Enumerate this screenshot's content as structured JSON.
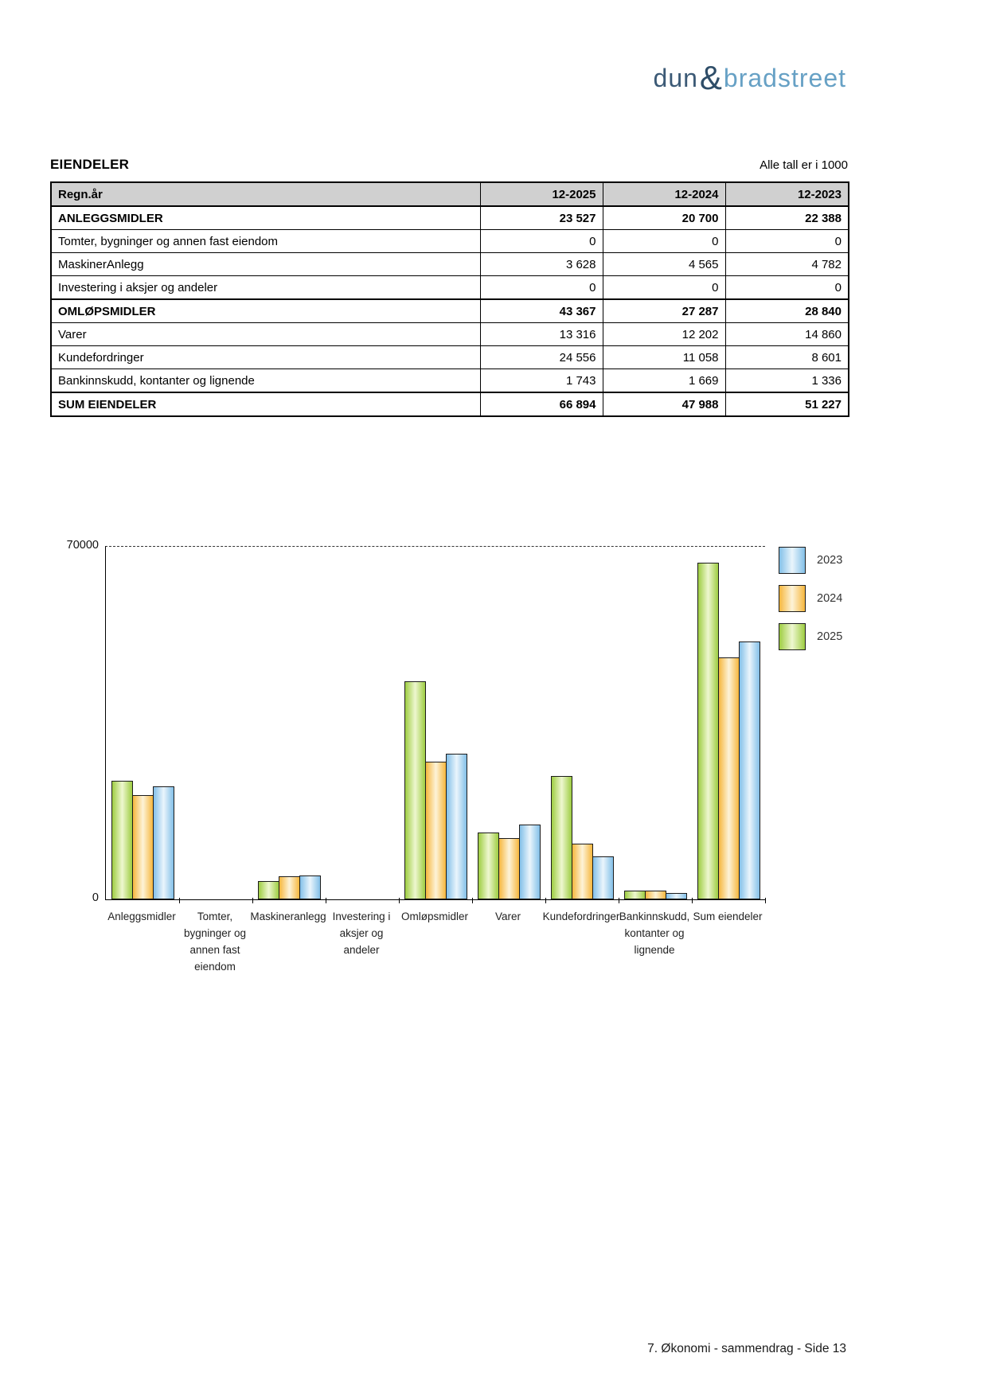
{
  "page": {
    "footer": "7. Økonomi - sammendrag - Side 13"
  },
  "logo": {
    "part1": "dun",
    "amp": "&",
    "part2": "bradstreet",
    "color_dark": "#3c5a76",
    "color_light": "#67a1c5"
  },
  "section": {
    "title": "EIENDELER",
    "note": "Alle tall er i 1000"
  },
  "table": {
    "header": [
      "Regn.år",
      "12-2025",
      "12-2024",
      "12-2023"
    ],
    "rows": [
      {
        "label": "ANLEGGSMIDLER",
        "values": [
          "23 527",
          "20 700",
          "22 388"
        ],
        "bold": true
      },
      {
        "label": "Tomter, bygninger og annen fast eiendom",
        "values": [
          "0",
          "0",
          "0"
        ],
        "bold": false
      },
      {
        "label": "MaskinerAnlegg",
        "values": [
          "3 628",
          "4 565",
          "4 782"
        ],
        "bold": false
      },
      {
        "label": "Investering i aksjer og andeler",
        "values": [
          "0",
          "0",
          "0"
        ],
        "bold": false
      },
      {
        "label": "OMLØPSMIDLER",
        "values": [
          "43 367",
          "27 287",
          "28 840"
        ],
        "bold": true
      },
      {
        "label": "Varer",
        "values": [
          "13 316",
          "12 202",
          "14 860"
        ],
        "bold": false
      },
      {
        "label": "Kundefordringer",
        "values": [
          "24 556",
          "11 058",
          "8 601"
        ],
        "bold": false
      },
      {
        "label": "Bankinnskudd, kontanter og lignende",
        "values": [
          "1 743",
          "1 669",
          "1 336"
        ],
        "bold": false
      },
      {
        "label": "SUM EIENDELER",
        "values": [
          "66 894",
          "47 988",
          "51 227"
        ],
        "bold": true
      }
    ]
  },
  "chart_data": {
    "type": "bar",
    "title": "",
    "xlabel": "",
    "ylabel": "",
    "ylim": [
      0,
      70000
    ],
    "ytick_labels": [
      "0",
      "70000"
    ],
    "grid": "dashed line at y=70000 only",
    "legend_position": "top-right",
    "categories": [
      "Anleggsmidler",
      "Tomter, bygninger og annen fast eiendom",
      "Maskineranlegg",
      "Investering i aksjer og andeler",
      "Omløpsmidler",
      "Varer",
      "Kundefordringer",
      "Bankinnskudd, kontanter og lignende",
      "Sum eiendeler"
    ],
    "category_lines": [
      [
        "Anleggsmidler"
      ],
      [
        "Tomter,",
        "bygninger og",
        "annen fast",
        "eiendom"
      ],
      [
        "Maskineranlegg"
      ],
      [
        "Investering i",
        "aksjer og",
        "andeler"
      ],
      [
        "Omløpsmidler"
      ],
      [
        "Varer"
      ],
      [
        "Kundefordringer"
      ],
      [
        "Bankinnskudd,",
        "kontanter og",
        "lignende"
      ],
      [
        "Sum eiendeler"
      ]
    ],
    "bar_order_left_to_right": [
      "2025",
      "2024",
      "2023"
    ],
    "series": [
      {
        "name": "2025",
        "values": [
          23527,
          0,
          3628,
          0,
          43367,
          13316,
          24556,
          1743,
          66894
        ]
      },
      {
        "name": "2024",
        "values": [
          20700,
          0,
          4565,
          0,
          27287,
          12202,
          11058,
          1669,
          47988
        ]
      },
      {
        "name": "2023",
        "values": [
          22388,
          0,
          4782,
          0,
          28840,
          14860,
          8601,
          1336,
          51227
        ]
      }
    ],
    "legend": [
      "2023",
      "2024",
      "2025"
    ],
    "colors": {
      "2025": {
        "edge": "#9ecd42",
        "mid": "#eef7d0"
      },
      "2024": {
        "edge": "#f6b73e",
        "mid": "#fdf3d8"
      },
      "2023": {
        "edge": "#83c0e8",
        "mid": "#eaf5fc"
      }
    }
  }
}
